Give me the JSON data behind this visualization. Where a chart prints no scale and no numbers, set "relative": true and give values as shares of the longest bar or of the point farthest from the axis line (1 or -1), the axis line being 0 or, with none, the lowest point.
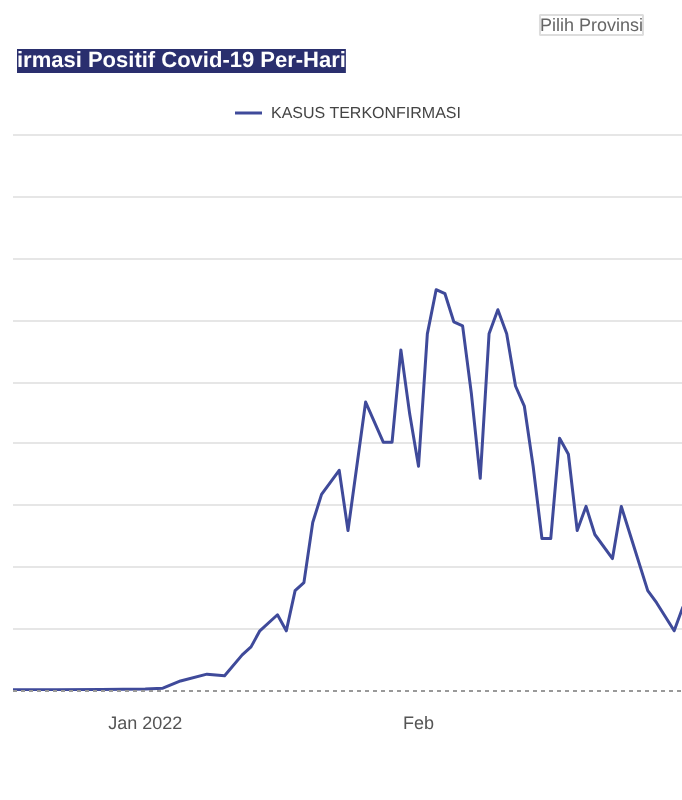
{
  "chart_data": {
    "type": "line",
    "title": "irmasi Positif Covid-19 Per-Hari",
    "annotations": [
      "Pilih Provinsi"
    ],
    "relative": true,
    "xlim": [
      "2021-12-17",
      "2022-03-03"
    ],
    "xticks": [
      {
        "value": "2022-01-01",
        "label": "Jan 2022"
      },
      {
        "value": "2022-02-01",
        "label": "Feb"
      }
    ],
    "grid": "y",
    "legend": "top",
    "marker": "none",
    "line_style": "solid",
    "series": [
      {
        "name": "KASUS TERKONFIRMASI",
        "color": "#3f4a9a",
        "x": [
          "2021-12-17",
          "2021-12-22",
          "2021-12-27",
          "2022-01-01",
          "2022-01-03",
          "2022-01-05",
          "2022-01-08",
          "2022-01-10",
          "2022-01-12",
          "2022-01-13",
          "2022-01-14",
          "2022-01-16",
          "2022-01-17",
          "2022-01-18",
          "2022-01-19",
          "2022-01-20",
          "2022-01-21",
          "2022-01-23",
          "2022-01-24",
          "2022-01-26",
          "2022-01-28",
          "2022-01-29",
          "2022-01-30",
          "2022-01-31",
          "2022-02-01",
          "2022-02-02",
          "2022-02-03",
          "2022-02-04",
          "2022-02-05",
          "2022-02-06",
          "2022-02-07",
          "2022-02-08",
          "2022-02-09",
          "2022-02-10",
          "2022-02-11",
          "2022-02-12",
          "2022-02-13",
          "2022-02-14",
          "2022-02-15",
          "2022-02-16",
          "2022-02-17",
          "2022-02-18",
          "2022-02-19",
          "2022-02-20",
          "2022-02-21",
          "2022-02-23",
          "2022-02-24",
          "2022-02-25",
          "2022-02-27",
          "2022-02-28",
          "2022-03-02",
          "2022-03-03"
        ],
        "values": [
          0.003,
          0.003,
          0.004,
          0.005,
          0.007,
          0.025,
          0.042,
          0.038,
          0.09,
          0.11,
          0.15,
          0.19,
          0.15,
          0.25,
          0.27,
          0.42,
          0.49,
          0.55,
          0.4,
          0.72,
          0.62,
          0.62,
          0.85,
          0.69,
          0.56,
          0.89,
          1.0,
          0.99,
          0.92,
          0.91,
          0.74,
          0.53,
          0.89,
          0.95,
          0.89,
          0.76,
          0.71,
          0.56,
          0.38,
          0.38,
          0.63,
          0.59,
          0.4,
          0.46,
          0.39,
          0.33,
          0.46,
          0.39,
          0.25,
          0.22,
          0.15,
          0.21
        ]
      }
    ]
  }
}
